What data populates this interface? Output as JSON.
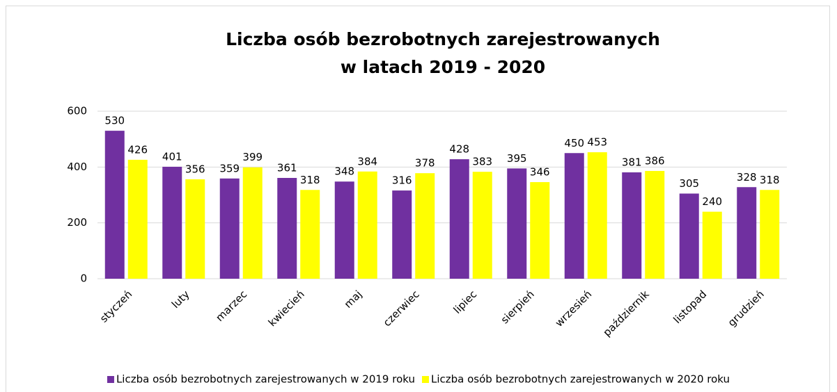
{
  "chart_data": {
    "type": "bar",
    "title": [
      "Liczba osób bezrobotnych zarejestrowanych",
      "w latach 2019 - 2020"
    ],
    "categories": [
      "styczeń",
      "luty",
      "marzec",
      "kwiecień",
      "maj",
      "czerwiec",
      "lipiec",
      "sierpień",
      "wrzesień",
      "październik",
      "listopad",
      "grudzień"
    ],
    "series": [
      {
        "name": "Liczba osób bezrobotnych zarejestrowanych w 2019 roku",
        "color": "#7030a0",
        "values": [
          530,
          401,
          359,
          361,
          348,
          316,
          428,
          395,
          450,
          381,
          305,
          328
        ]
      },
      {
        "name": "Liczba osób bezrobotnych zarejestrowanych w 2020 roku",
        "color": "#ffff00",
        "values": [
          426,
          356,
          399,
          318,
          384,
          378,
          383,
          346,
          453,
          386,
          240,
          318
        ]
      }
    ],
    "ylim": [
      0,
      600
    ],
    "yticks": [
      0,
      200,
      400,
      600
    ],
    "grid": true,
    "legend": "bottom"
  }
}
